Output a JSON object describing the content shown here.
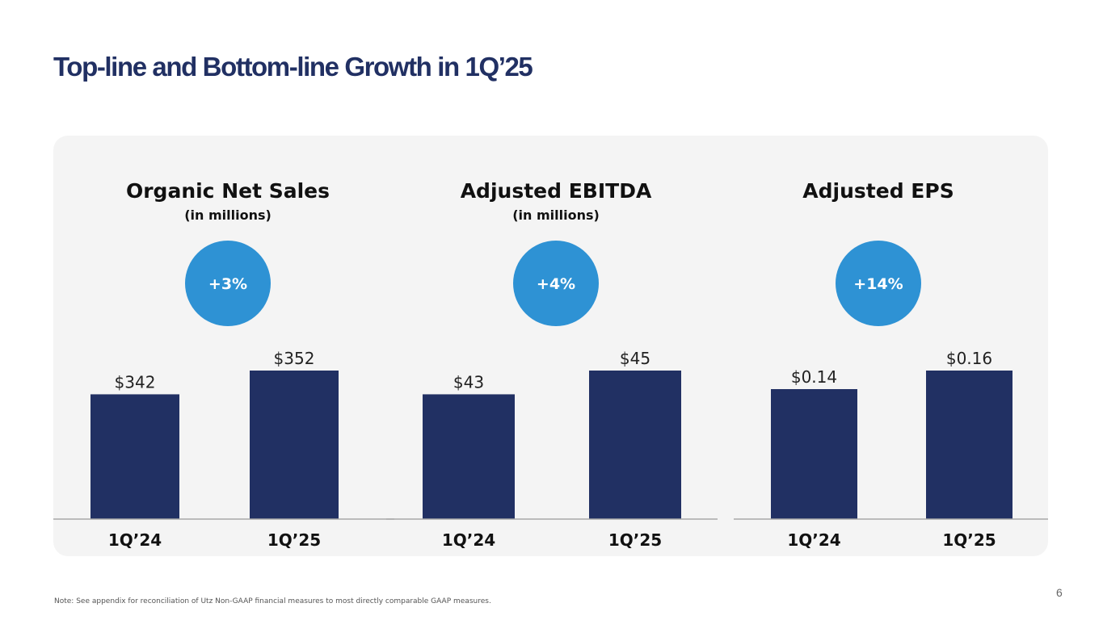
{
  "slide": {
    "title": "Top-line and Bottom-line Growth in 1Q’25",
    "footnote": "Note: See appendix for reconciliation of Utz Non-GAAP financial measures to most directly comparable GAAP measures.",
    "page_number": "6"
  },
  "colors": {
    "title": "#213063",
    "bar": "#213063",
    "badge": "#2e92d4",
    "panel_background": "#f4f4f4",
    "baseline": "#a8a8a8"
  },
  "chart_data": [
    {
      "type": "bar",
      "title": "Organic Net Sales",
      "subtitle": "(in millions)",
      "growth_badge": "+3%",
      "categories": [
        "1Q’24",
        "1Q’25"
      ],
      "values": [
        342,
        352
      ],
      "value_labels": [
        "$342",
        "$352"
      ],
      "xlabel": "",
      "ylabel": "",
      "ylim": [
        0,
        352
      ],
      "grid": false,
      "legend": "none"
    },
    {
      "type": "bar",
      "title": "Adjusted EBITDA",
      "subtitle": "(in millions)",
      "growth_badge": "+4%",
      "categories": [
        "1Q’24",
        "1Q’25"
      ],
      "values": [
        43,
        45
      ],
      "value_labels": [
        "$43",
        "$45"
      ],
      "xlabel": "",
      "ylabel": "",
      "ylim": [
        0,
        45
      ],
      "grid": false,
      "legend": "none"
    },
    {
      "type": "bar",
      "title": "Adjusted EPS",
      "subtitle": "",
      "growth_badge": "+14%",
      "categories": [
        "1Q’24",
        "1Q’25"
      ],
      "values": [
        0.14,
        0.16
      ],
      "value_labels": [
        "$0.14",
        "$0.16"
      ],
      "xlabel": "",
      "ylabel": "",
      "ylim": [
        0,
        0.16
      ],
      "grid": false,
      "legend": "none"
    }
  ]
}
